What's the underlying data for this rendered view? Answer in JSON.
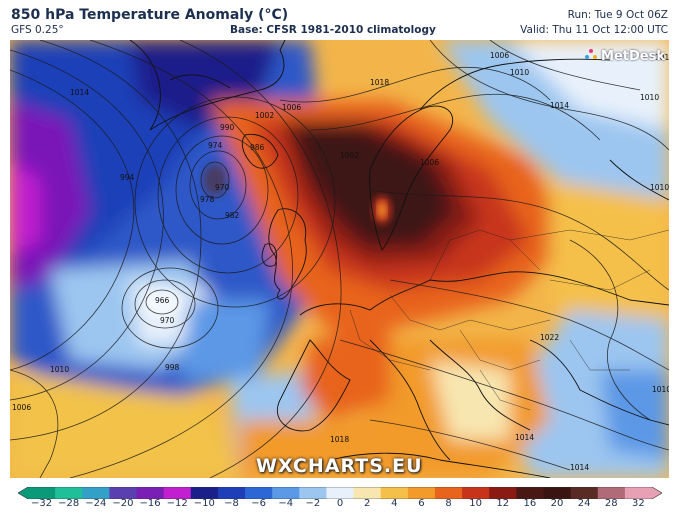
{
  "header": {
    "title": "850 hPa Temperature Anomaly (°C)",
    "model": "GFS 0.25°",
    "base": "Base: CFSR 1981-2010 climatology",
    "run": "Run: Tue 9 Oct 06Z",
    "valid": "Valid: Thu 11 Oct 12:00 UTC"
  },
  "branding": {
    "metdesk": "MetDesk",
    "watermark": "WXCHARTS.EU"
  },
  "isobar_labels": [
    "1014",
    "1018",
    "1010",
    "1006",
    "1002",
    "1006",
    "1010",
    "1014",
    "990",
    "986",
    "978",
    "974",
    "970",
    "982",
    "966",
    "970",
    "998",
    "1010",
    "1006",
    "1010",
    "1014",
    "1018",
    "1022",
    "1010",
    "1014",
    "1018",
    "1006",
    "1002",
    "994"
  ],
  "colorbar": {
    "ticks": [
      "−32",
      "−28",
      "−24",
      "−20",
      "−16",
      "−12",
      "−10",
      "−8",
      "−6",
      "−4",
      "−2",
      "0",
      "2",
      "4",
      "6",
      "8",
      "10",
      "12",
      "16",
      "20",
      "24",
      "28",
      "32"
    ],
    "colors": [
      "#0a9a7a",
      "#1fbf9a",
      "#33a0c8",
      "#5a3fb0",
      "#7a1fb5",
      "#c21fd0",
      "#1b1f8a",
      "#1f3fb8",
      "#2d67d6",
      "#5b98e6",
      "#9cc6f0",
      "#e8f1fb",
      "#f8e6b0",
      "#f5c04a",
      "#f29a2a",
      "#e8641c",
      "#c8341a",
      "#8a1a14",
      "#4a1812",
      "#3a1410",
      "#5a2a24",
      "#b06a78",
      "#e8a0b4"
    ]
  },
  "palette": {
    "warm_core": "#3c1612",
    "cold_core": "#7a12b8",
    "ocean_blue": "#2f58c8",
    "land_orange": "#f29a2a"
  }
}
